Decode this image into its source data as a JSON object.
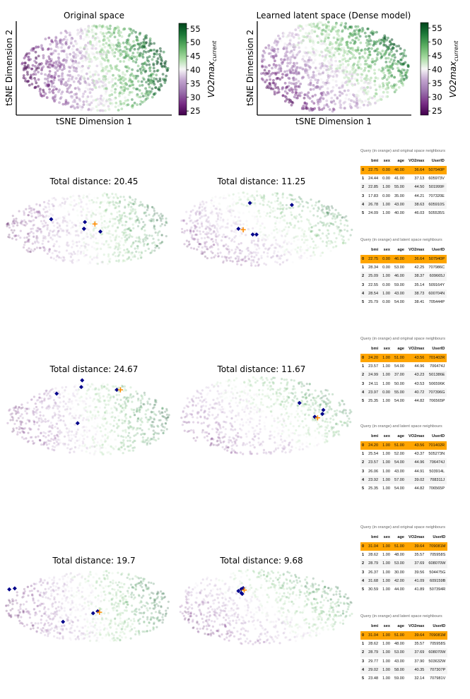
{
  "header_panels": [
    {
      "title": "Original space",
      "xlabel": "tSNE Dimension 1",
      "ylabel": "tSNE Dimension 2"
    },
    {
      "title": "Learned latent space (Dense model)",
      "xlabel": "tSNE Dimension 1",
      "ylabel": "tSNE Dimension 2"
    }
  ],
  "colorbar": {
    "label_base": "VO2max",
    "label_sub": "current",
    "ticks": [
      "55",
      "50",
      "45",
      "40",
      "35",
      "30",
      "25"
    ],
    "range": [
      23.5,
      57
    ],
    "colors": {
      "low": "#40004b",
      "mid": "#f7f7f7",
      "high": "#00441b"
    }
  },
  "colors": {
    "query": "#ff8c00",
    "neighbour": "#00008b",
    "highlight_row": "#ffa500"
  },
  "table_columns": [
    "",
    "bmi",
    "sex",
    "age",
    "VO2max",
    "UserID"
  ],
  "examples": [
    {
      "orig_title": "Total distance: 20.45",
      "latent_title": "Total distance: 11.25",
      "orig_table": {
        "caption": "Query (in orange) and original space neighbours",
        "rows": [
          [
            "0",
            "22.75",
            "0.00",
            "46.00",
            "36.64",
            "507940P"
          ],
          [
            "1",
            "24.44",
            "0.00",
            "41.00",
            "37.13",
            "605973V"
          ],
          [
            "2",
            "22.85",
            "1.00",
            "55.00",
            "44.50",
            "501999F"
          ],
          [
            "3",
            "17.83",
            "0.00",
            "35.00",
            "44.21",
            "707320E"
          ],
          [
            "4",
            "26.78",
            "1.00",
            "43.00",
            "38.63",
            "605910S"
          ],
          [
            "5",
            "24.09",
            "1.00",
            "40.00",
            "46.03",
            "505535S"
          ]
        ]
      },
      "latent_table": {
        "caption": "Query (in orange) and latent space neighbours",
        "rows": [
          [
            "0",
            "22.75",
            "0.00",
            "46.00",
            "36.64",
            "507940P"
          ],
          [
            "1",
            "28.34",
            "0.00",
            "53.00",
            "42.25",
            "707986C"
          ],
          [
            "2",
            "25.09",
            "1.00",
            "46.00",
            "38.37",
            "609665J"
          ],
          [
            "3",
            "22.55",
            "0.00",
            "59.00",
            "35.14",
            "509164Y"
          ],
          [
            "4",
            "28.54",
            "1.00",
            "43.00",
            "38.73",
            "600704N"
          ],
          [
            "5",
            "25.79",
            "0.00",
            "54.00",
            "38.41",
            "705444P"
          ]
        ]
      }
    },
    {
      "orig_title": "Total distance: 24.67",
      "latent_title": "Total distance: 11.67",
      "orig_table": {
        "caption": "Query (in orange) and original space neighbours",
        "rows": [
          [
            "0",
            "24.20",
            "1.00",
            "51.00",
            "43.56",
            "701402R"
          ],
          [
            "1",
            "23.57",
            "1.00",
            "54.00",
            "44.96",
            "706474J"
          ],
          [
            "2",
            "24.99",
            "1.00",
            "37.00",
            "43.23",
            "501386E"
          ],
          [
            "3",
            "24.11",
            "1.00",
            "50.00",
            "43.53",
            "506596K"
          ],
          [
            "4",
            "23.97",
            "0.00",
            "55.00",
            "40.72",
            "707396G"
          ],
          [
            "5",
            "25.35",
            "1.00",
            "54.00",
            "44.82",
            "706565P"
          ]
        ]
      },
      "latent_table": {
        "caption": "Query (in orange) and latent space neighbours",
        "rows": [
          [
            "0",
            "24.20",
            "1.00",
            "51.00",
            "43.56",
            "701402R"
          ],
          [
            "1",
            "25.54",
            "1.00",
            "52.00",
            "43.37",
            "505273N"
          ],
          [
            "2",
            "23.57",
            "1.00",
            "54.00",
            "44.96",
            "706474J"
          ],
          [
            "3",
            "26.06",
            "1.00",
            "43.00",
            "44.91",
            "503914L"
          ],
          [
            "4",
            "23.92",
            "1.00",
            "57.00",
            "39.02",
            "708311J"
          ],
          [
            "5",
            "25.35",
            "1.00",
            "54.00",
            "44.82",
            "706565P"
          ]
        ]
      }
    },
    {
      "orig_title": "Total distance: 19.7",
      "latent_title": "Total distance: 9.68",
      "orig_table": {
        "caption": "Query (in orange) and original space neighbours",
        "rows": [
          [
            "0",
            "31.04",
            "1.00",
            "51.00",
            "39.64",
            "709081M"
          ],
          [
            "1",
            "28.62",
            "1.00",
            "48.00",
            "35.57",
            "705958S"
          ],
          [
            "2",
            "28.79",
            "1.00",
            "53.00",
            "37.69",
            "608070W"
          ],
          [
            "3",
            "26.37",
            "1.00",
            "30.00",
            "39.56",
            "504475G"
          ],
          [
            "4",
            "31.68",
            "1.00",
            "42.00",
            "41.09",
            "609159B"
          ],
          [
            "5",
            "30.59",
            "1.00",
            "44.00",
            "41.89",
            "507394R"
          ]
        ]
      },
      "latent_table": {
        "caption": "Query (in orange) and latent space neighbours",
        "rows": [
          [
            "0",
            "31.04",
            "1.00",
            "51.00",
            "39.64",
            "709081M"
          ],
          [
            "1",
            "28.62",
            "1.00",
            "48.00",
            "35.57",
            "705958S"
          ],
          [
            "2",
            "28.79",
            "1.00",
            "53.00",
            "37.69",
            "608070W"
          ],
          [
            "3",
            "29.77",
            "1.00",
            "43.00",
            "37.90",
            "503632W"
          ],
          [
            "4",
            "29.02",
            "1.00",
            "58.00",
            "40.35",
            "707307P"
          ],
          [
            "5",
            "23.48",
            "1.00",
            "59.00",
            "32.14",
            "707981V"
          ]
        ]
      }
    }
  ],
  "chart_data": [
    {
      "type": "scatter",
      "title": "Original space",
      "xlabel": "tSNE Dimension 1",
      "ylabel": "tSNE Dimension 2",
      "color_label": "VO2max_current",
      "color_range": [
        23.5,
        57
      ],
      "color_ticks": [
        25,
        30,
        35,
        40,
        45,
        50,
        55
      ],
      "cloud": {
        "points": 1100,
        "seed": 11,
        "x_range": [
          -9,
          9
        ],
        "y_range": [
          -4,
          4
        ],
        "gradient": "low left, high right"
      }
    },
    {
      "type": "scatter",
      "title": "Learned latent space (Dense model)",
      "xlabel": "tSNE Dimension 1",
      "ylabel": "tSNE Dimension 2",
      "color_label": "VO2max_current",
      "color_range": [
        23.5,
        57
      ],
      "color_ticks": [
        25,
        30,
        35,
        40,
        45,
        50,
        55
      ],
      "cloud": {
        "points": 1200,
        "seed": 23,
        "x_range": [
          -9,
          9
        ],
        "y_range": [
          -4,
          4
        ],
        "gradient": "low bottom-left, high top-right"
      }
    },
    {
      "type": "scatter",
      "title": "Total distance: 20.45",
      "query": [
        0.8,
        0.5
      ],
      "neighbours": [
        [
          -4.0,
          1.0
        ],
        [
          -0.3,
          0.7
        ],
        [
          -0.4,
          0.0
        ],
        [
          1.4,
          -0.3
        ],
        [
          -0.4,
          0.0
        ]
      ]
    },
    {
      "type": "scatter",
      "title": "Total distance: 11.25",
      "query": [
        -2.4,
        -0.1
      ],
      "neighbours": [
        [
          -1.7,
          2.7
        ],
        [
          2.7,
          2.5
        ],
        [
          -2.9,
          0.0
        ],
        [
          -1.0,
          -0.6
        ],
        [
          -1.4,
          -0.6
        ]
      ]
    },
    {
      "type": "scatter",
      "title": "Total distance: 24.67",
      "query": [
        3.6,
        3.1
      ],
      "neighbours": [
        [
          3.2,
          3.1
        ],
        [
          -0.6,
          4.1
        ],
        [
          -3.4,
          2.7
        ],
        [
          -0.7,
          3.4
        ],
        [
          -1.1,
          -0.4
        ]
      ]
    },
    {
      "type": "scatter",
      "title": "Total distance: 11.67",
      "query": [
        5.4,
        -0.2
      ],
      "neighbours": [
        [
          6.0,
          0.6
        ],
        [
          5.1,
          -0.1
        ],
        [
          3.5,
          1.3
        ],
        [
          5.9,
          0.2
        ],
        [
          5.1,
          -0.1
        ]
      ]
    },
    {
      "type": "scatter",
      "title": "Total distance: 19.7",
      "query": [
        1.3,
        -0.6
      ],
      "neighbours": [
        [
          -8.6,
          1.8
        ],
        [
          -8.0,
          1.9
        ],
        [
          0.6,
          -0.7
        ],
        [
          -2.7,
          -1.6
        ],
        [
          1.1,
          -0.5
        ]
      ]
    },
    {
      "type": "scatter",
      "title": "Total distance: 9.68",
      "query": [
        -2.3,
        1.8
      ],
      "neighbours": [
        [
          -2.6,
          1.5
        ],
        [
          -2.4,
          2.0
        ],
        [
          -2.6,
          1.9
        ],
        [
          -2.9,
          1.7
        ],
        [
          -2.5,
          1.4
        ]
      ]
    }
  ]
}
